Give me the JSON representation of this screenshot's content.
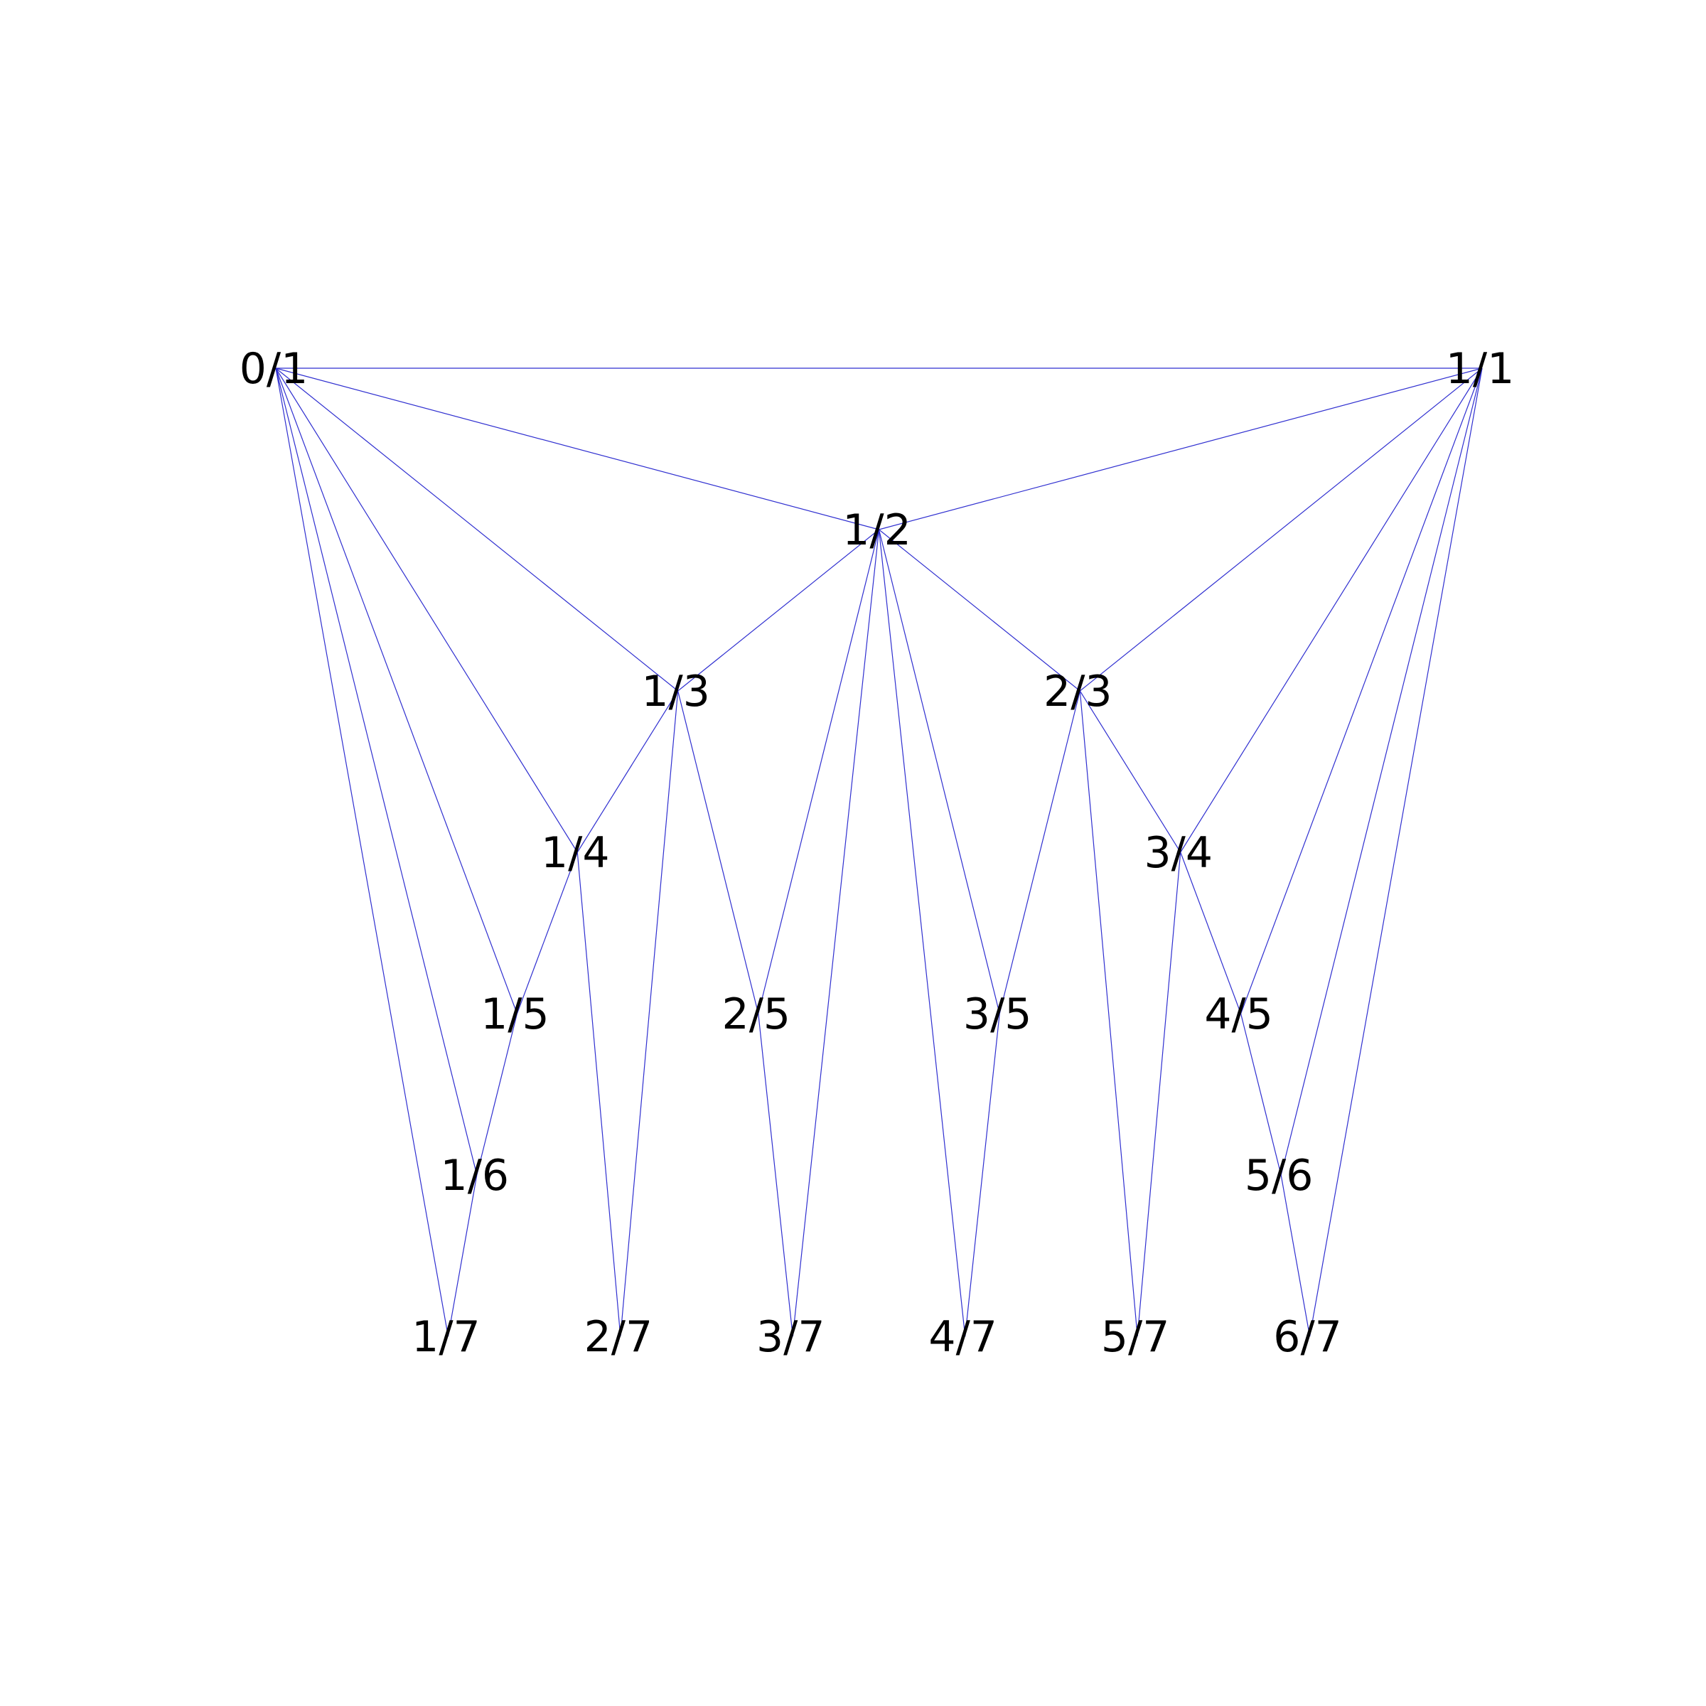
{
  "diagram": {
    "edge_color": "#2f2fd0",
    "label_color": "#000000",
    "background": "#ffffff",
    "nodes": [
      {
        "id": "0/1",
        "label": "0/1"
      },
      {
        "id": "1/1",
        "label": "1/1"
      },
      {
        "id": "1/2",
        "label": "1/2"
      },
      {
        "id": "1/3",
        "label": "1/3"
      },
      {
        "id": "2/3",
        "label": "2/3"
      },
      {
        "id": "1/4",
        "label": "1/4"
      },
      {
        "id": "3/4",
        "label": "3/4"
      },
      {
        "id": "1/5",
        "label": "1/5"
      },
      {
        "id": "2/5",
        "label": "2/5"
      },
      {
        "id": "3/5",
        "label": "3/5"
      },
      {
        "id": "4/5",
        "label": "4/5"
      },
      {
        "id": "1/6",
        "label": "1/6"
      },
      {
        "id": "5/6",
        "label": "5/6"
      },
      {
        "id": "1/7",
        "label": "1/7"
      },
      {
        "id": "2/7",
        "label": "2/7"
      },
      {
        "id": "3/7",
        "label": "3/7"
      },
      {
        "id": "4/7",
        "label": "4/7"
      },
      {
        "id": "5/7",
        "label": "5/7"
      },
      {
        "id": "6/7",
        "label": "6/7"
      }
    ],
    "edges": [
      [
        "0/1",
        "1/1"
      ],
      [
        "0/1",
        "1/2"
      ],
      [
        "1/1",
        "1/2"
      ],
      [
        "0/1",
        "1/3"
      ],
      [
        "1/2",
        "1/3"
      ],
      [
        "1/2",
        "2/3"
      ],
      [
        "1/1",
        "2/3"
      ],
      [
        "0/1",
        "1/4"
      ],
      [
        "1/3",
        "1/4"
      ],
      [
        "2/3",
        "3/4"
      ],
      [
        "1/1",
        "3/4"
      ],
      [
        "0/1",
        "1/5"
      ],
      [
        "1/4",
        "1/5"
      ],
      [
        "1/3",
        "2/5"
      ],
      [
        "1/2",
        "2/5"
      ],
      [
        "1/2",
        "3/5"
      ],
      [
        "2/3",
        "3/5"
      ],
      [
        "3/4",
        "4/5"
      ],
      [
        "1/1",
        "4/5"
      ],
      [
        "0/1",
        "1/6"
      ],
      [
        "1/5",
        "1/6"
      ],
      [
        "4/5",
        "5/6"
      ],
      [
        "1/1",
        "5/6"
      ],
      [
        "0/1",
        "1/7"
      ],
      [
        "1/6",
        "1/7"
      ],
      [
        "1/4",
        "2/7"
      ],
      [
        "1/3",
        "2/7"
      ],
      [
        "2/5",
        "3/7"
      ],
      [
        "1/2",
        "3/7"
      ],
      [
        "1/2",
        "4/7"
      ],
      [
        "3/5",
        "4/7"
      ],
      [
        "2/3",
        "5/7"
      ],
      [
        "3/4",
        "5/7"
      ],
      [
        "5/6",
        "6/7"
      ],
      [
        "1/1",
        "6/7"
      ]
    ]
  }
}
